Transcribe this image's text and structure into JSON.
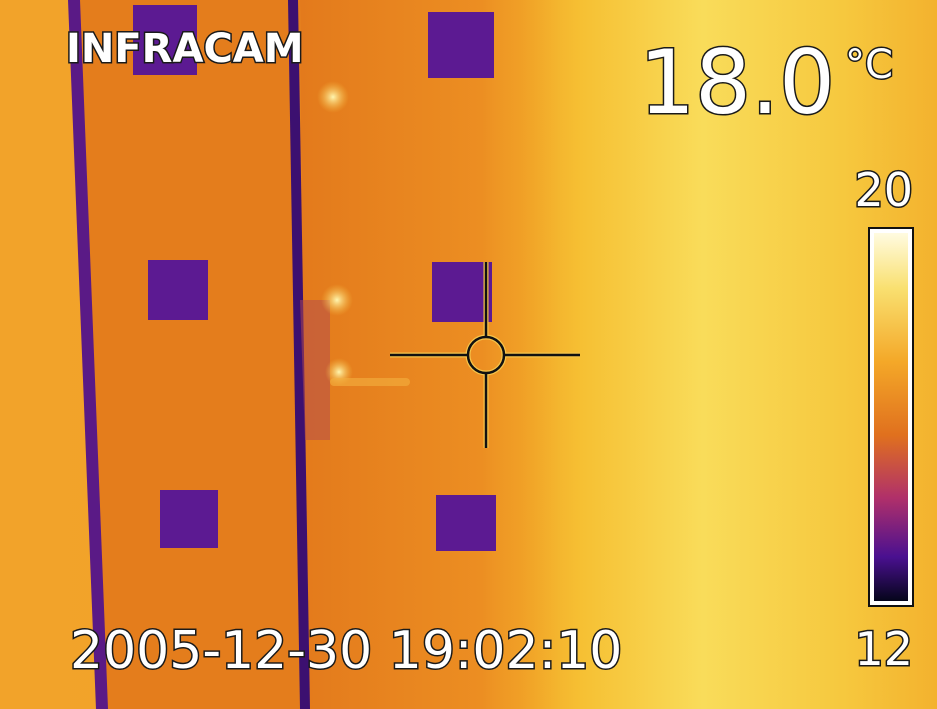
{
  "brand": "INFRACAM",
  "temperature": "18.0",
  "unit": "°C",
  "scale": {
    "max": "20",
    "min": "12"
  },
  "timestamp": "2005-12-30 19:02:10"
}
